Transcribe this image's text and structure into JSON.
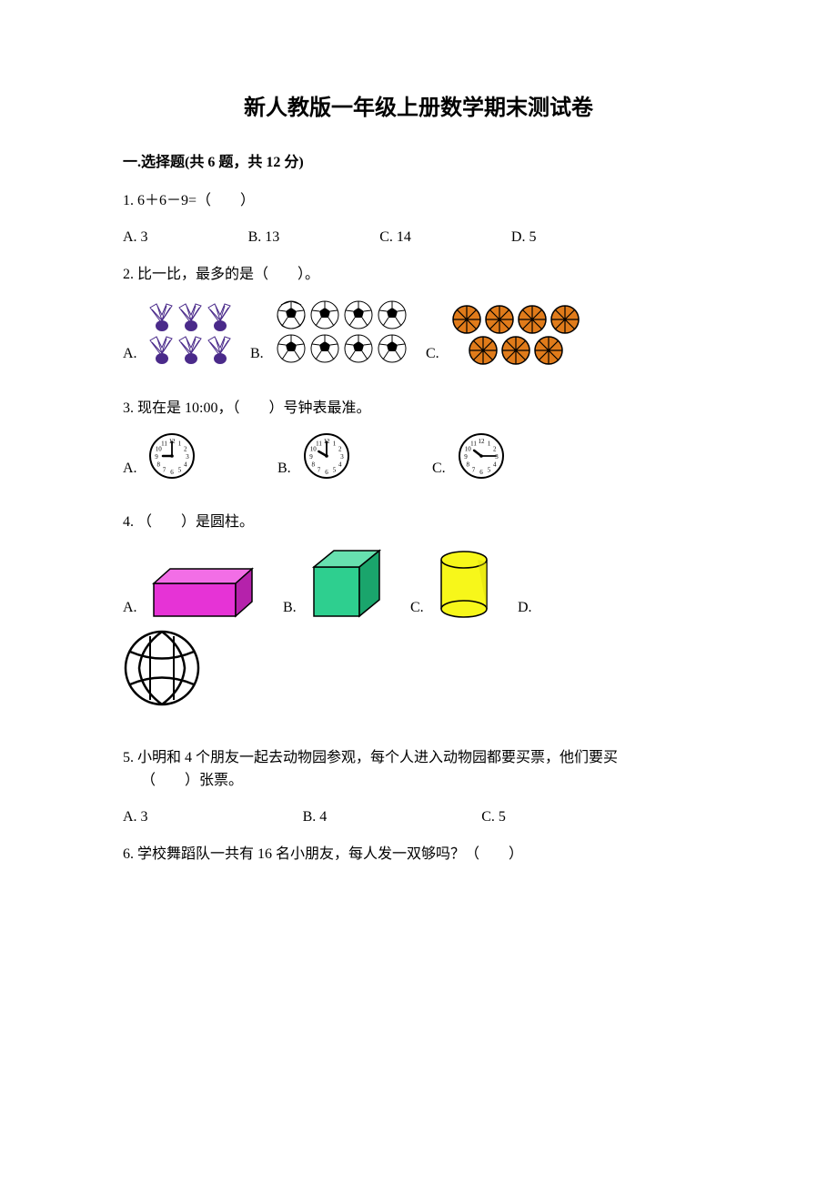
{
  "title": "新人教版一年级上册数学期末测试卷",
  "section1": {
    "header": "一.选择题(共 6 题，共 12 分)",
    "q1": {
      "text": "1. 6＋6－9=（　　）",
      "A": "A. 3",
      "B": "B. 13",
      "C": "C. 14",
      "D": "D. 5"
    },
    "q2": {
      "text": "2. 比一比，最多的是（　　）。",
      "A": "A.",
      "B": "B.",
      "C": "C.",
      "shuttlecock": {
        "count": 6,
        "fill": "#4a2a8a",
        "feather": "#ffffff"
      },
      "soccer": {
        "count": 8,
        "ball_fill": "#ffffff",
        "patch": "#000000"
      },
      "basketball": {
        "count": 7,
        "fill": "#e07b1a",
        "line": "#000000"
      }
    },
    "q3": {
      "text": "3. 现在是 10:00，（　　）号钟表最准。",
      "A": "A.",
      "B": "B.",
      "C": "C.",
      "clocks": {
        "face_fill": "#ffffff",
        "stroke": "#000000",
        "A": {
          "hour": 9,
          "minute": 0
        },
        "B": {
          "hour": 10,
          "minute": 0
        },
        "C": {
          "hour": 10,
          "minute": 15
        }
      }
    },
    "q4": {
      "text": "4. （　　）是圆柱。",
      "A": "A.",
      "B": "B.",
      "C": "C.",
      "D": "D.",
      "shapes": {
        "cuboid": {
          "fill": "#e633d6",
          "side": "#b522ab",
          "top": "#f26ee6",
          "stroke": "#000000"
        },
        "cube": {
          "fill": "#2ecf8f",
          "side": "#1aa56c",
          "top": "#67e0af",
          "stroke": "#000000"
        },
        "cylinder": {
          "fill": "#f7f71a",
          "shade": "#d6d60a",
          "stroke": "#000000"
        },
        "volleyball": {
          "fill": "#ffffff",
          "stroke": "#000000"
        }
      }
    },
    "q5": {
      "text1": "5. 小明和 4 个朋友一起去动物园参观，每个人进入动物园都要买票，他们要买",
      "text2": "（　　）张票。",
      "A": "A. 3",
      "B": "B. 4",
      "C": "C. 5"
    },
    "q6": {
      "text": "6. 学校舞蹈队一共有 16 名小朋友，每人发一双够吗？（　　）"
    }
  },
  "colors": {
    "text": "#000000",
    "bg": "#ffffff"
  }
}
